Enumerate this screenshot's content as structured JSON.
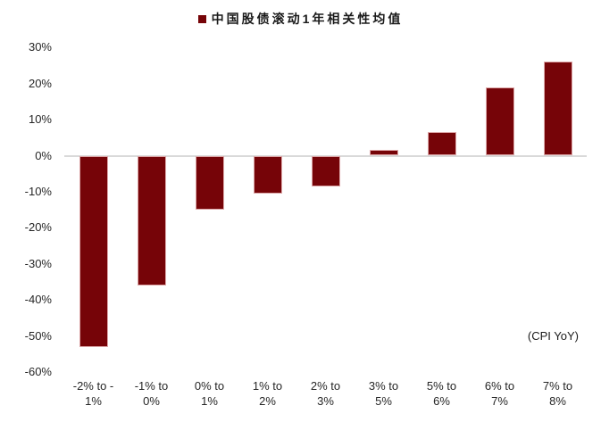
{
  "chart_data": {
    "type": "bar",
    "title": "中国股债滚动1年相关性均值",
    "annotation": "(CPI YoY)",
    "categories": [
      "-2% to -1%",
      "-1% to 0%",
      "0% to 1%",
      "1% to 2%",
      "2% to 3%",
      "3% to 5%",
      "5% to 6%",
      "6% to 7%",
      "7% to 8%"
    ],
    "tick_labels": [
      "-2% to -\n1%",
      "-1% to\n0%",
      "0% to\n1%",
      "1% to\n2%",
      "2% to\n3%",
      "3% to\n5%",
      "5% to\n6%",
      "6% to\n7%",
      "7% to\n8%"
    ],
    "values": [
      -53,
      -36,
      -15,
      -10.5,
      -8.5,
      1.5,
      6.5,
      19,
      26
    ],
    "xlabel": "",
    "ylabel": "",
    "y_ticks": [
      "30%",
      "20%",
      "10%",
      "0%",
      "-10%",
      "-20%",
      "-30%",
      "-40%",
      "-50%",
      "-60%"
    ],
    "y_tick_values": [
      30,
      20,
      10,
      0,
      -10,
      -20,
      -30,
      -40,
      -50,
      -60
    ],
    "ylim": [
      -60,
      30
    ],
    "grid": "zero-line-only",
    "legend_position": "top-center",
    "colors": {
      "bar": "#760408",
      "gridline": "#d9d9d9",
      "tick_text": "#262626",
      "title_text": "#1a1a1a"
    }
  }
}
